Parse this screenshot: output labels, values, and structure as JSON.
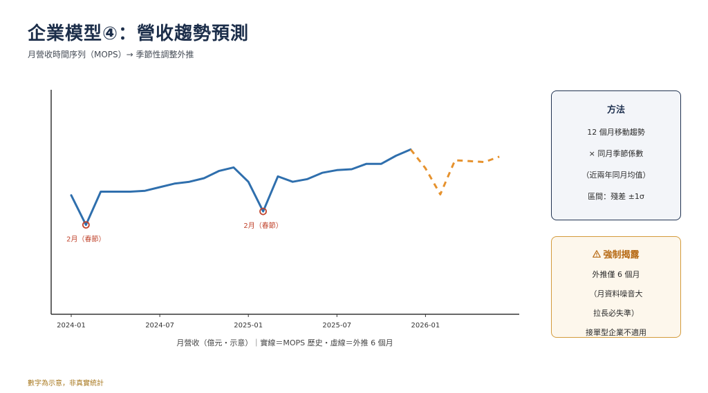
{
  "header": {
    "title": "企業模型④：營收趨勢預測",
    "subtitle": "月營收時間序列（MOPS）→ 季節性調整外推"
  },
  "method_box": {
    "title": "方法",
    "lines": [
      "12 個月移動趨勢",
      "× 同月季節係數",
      "（近兩年同月均值）",
      "區間：殘差 ±1σ"
    ]
  },
  "warning_box": {
    "icon": "warning-triangle-icon",
    "title": "強制揭露",
    "lines": [
      "外推僅 6 個月",
      "（月資料噪音大",
      "拉長必失準）",
      "接單型企業不適用"
    ]
  },
  "footnote": "數字為示意，非真實統計",
  "chart_data": {
    "type": "line",
    "xlabel": "月營收（億元・示意）｜實線＝MOPS 歷史・虛線＝外推 6 個月",
    "ylabel": "",
    "x_ticks": [
      "2024-01",
      "2024-07",
      "2025-01",
      "2025-07",
      "2026-01"
    ],
    "colors": {
      "history": "#2f6fad",
      "forecast": "#e6922e",
      "annotation": "#c0432c"
    },
    "series": [
      {
        "key": "history",
        "style": "solid",
        "x": [
          "2024-01",
          "2024-02",
          "2024-03",
          "2024-04",
          "2024-05",
          "2024-06",
          "2024-07",
          "2024-08",
          "2024-09",
          "2024-10",
          "2024-11",
          "2024-12",
          "2025-01",
          "2025-02",
          "2025-03",
          "2025-04",
          "2025-05",
          "2025-06",
          "2025-07",
          "2025-08",
          "2025-09",
          "2025-10",
          "2025-11",
          "2025-12"
        ],
        "values": [
          101,
          68,
          105,
          105,
          105,
          106,
          110,
          114,
          116,
          120,
          128,
          132,
          116,
          83,
          122,
          116,
          119,
          126,
          129,
          130,
          136,
          136,
          145,
          152
        ]
      },
      {
        "key": "forecast",
        "style": "dashed",
        "x": [
          "2025-12",
          "2026-01",
          "2026-02",
          "2026-03",
          "2026-04",
          "2026-05",
          "2026-06"
        ],
        "values": [
          152,
          131,
          102,
          140,
          139,
          138,
          144
        ]
      }
    ],
    "annotations": [
      {
        "x": "2024-02",
        "value": 68,
        "label": "2月（春節）"
      },
      {
        "x": "2025-02",
        "value": 83,
        "label": "2月（春節）"
      }
    ]
  }
}
